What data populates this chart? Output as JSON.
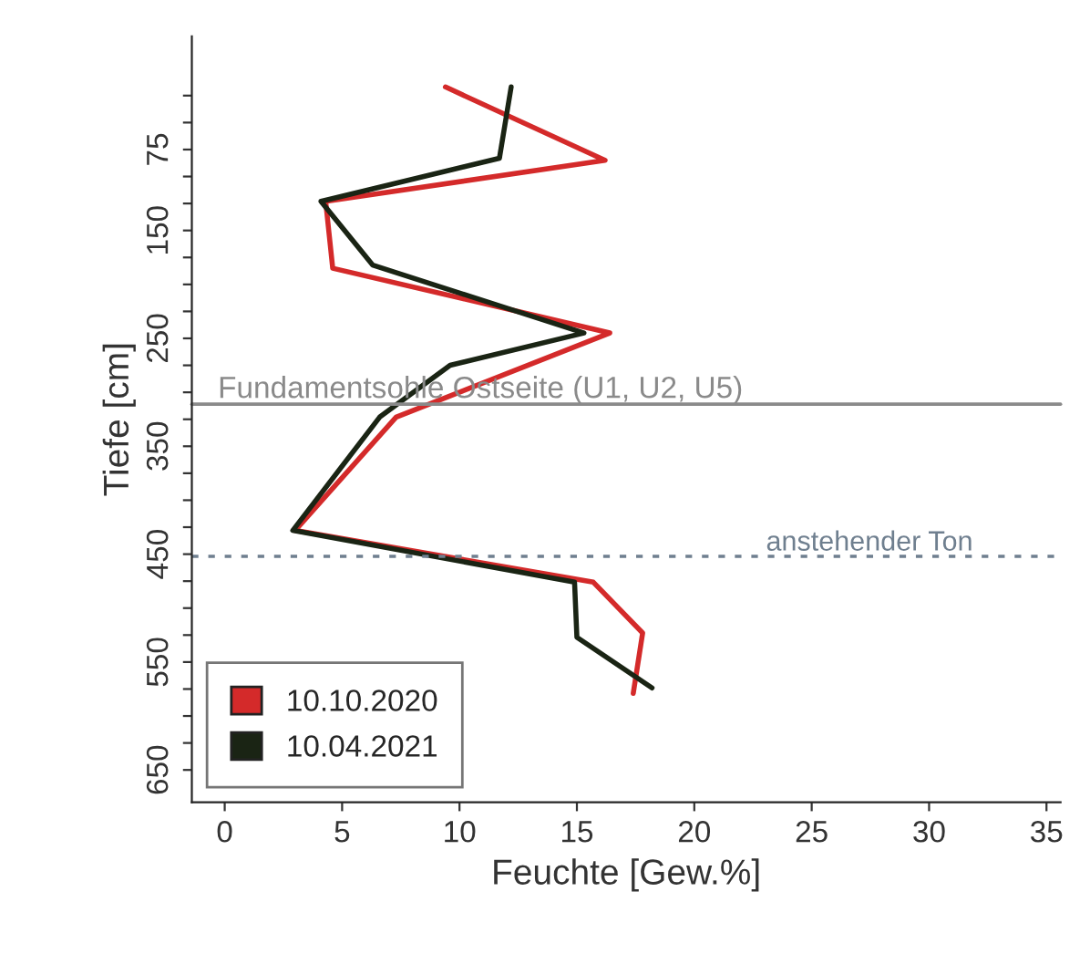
{
  "chart_data": {
    "type": "line",
    "orientation": "horizontal",
    "xlabel": "Feuchte [Gew.%]",
    "ylabel": "Tiefe [cm]",
    "xlim": [
      -1.4,
      35.6
    ],
    "xticks": [
      0,
      5,
      10,
      15,
      20,
      25,
      30,
      35
    ],
    "ylim": [
      680,
      -30
    ],
    "yticks": [
      {
        "value": 25,
        "label": null
      },
      {
        "value": 50,
        "label": null
      },
      75,
      {
        "value": 100,
        "label": null
      },
      {
        "value": 125,
        "label": null
      },
      150,
      {
        "value": 175,
        "label": null
      },
      {
        "value": 200,
        "label": null
      },
      {
        "value": 225,
        "label": null
      },
      250,
      {
        "value": 275,
        "label": null
      },
      {
        "value": 300,
        "label": null
      },
      {
        "value": 325,
        "label": null
      },
      350,
      {
        "value": 375,
        "label": null
      },
      {
        "value": 400,
        "label": null
      },
      {
        "value": 425,
        "label": null
      },
      450,
      {
        "value": 475,
        "label": null
      },
      {
        "value": 500,
        "label": null
      },
      {
        "value": 525,
        "label": null
      },
      550,
      {
        "value": 575,
        "label": null
      },
      {
        "value": 600,
        "label": null
      },
      {
        "value": 625,
        "label": null
      },
      650
    ],
    "series": [
      {
        "name": "10.10.2020",
        "color": "#d42a2a",
        "x": [
          17,
          85,
          123,
          185,
          245,
          323,
          428,
          476,
          523,
          579
        ],
        "values": [
          9.4,
          16.2,
          4.3,
          4.6,
          16.4,
          7.3,
          3.0,
          15.7,
          17.8,
          17.4
        ]
      },
      {
        "name": "10.04.2021",
        "color": "#1a2414",
        "x": [
          17,
          83,
          123,
          182,
          245,
          275,
          323,
          428,
          476,
          527,
          574
        ],
        "values": [
          12.2,
          11.7,
          4.1,
          6.3,
          15.3,
          9.6,
          6.6,
          2.9,
          14.9,
          15.0,
          18.2
        ]
      }
    ],
    "ref_lines": [
      {
        "axis": "y",
        "value": 311,
        "label": "Fundamentsohle Ostseite (U1, U2, U5)",
        "color": "#8a8a8a",
        "line_style": "solid"
      },
      {
        "axis": "y",
        "value": 452,
        "label": "anstehender Ton",
        "color": "#6f7f8f",
        "line_style": "dotted"
      }
    ],
    "legend": "bottom left",
    "grid": false,
    "marker": "none",
    "line_style": "solid"
  }
}
